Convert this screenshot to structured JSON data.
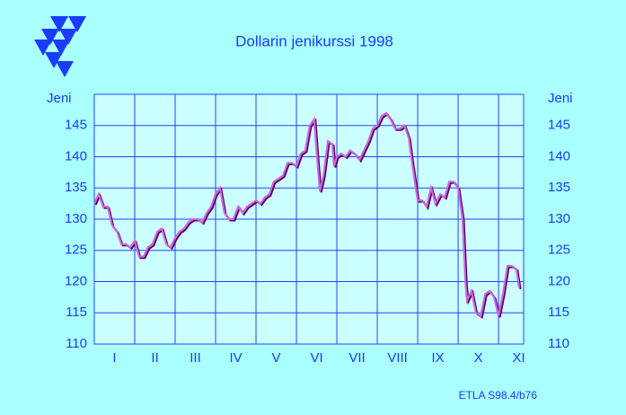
{
  "chart_data": {
    "type": "line",
    "title": "Dollarin jenikurssi 1998",
    "ylabel": "Jeni",
    "y2label": "Jeni",
    "source": "ETLA S98.4/b76",
    "grid": true,
    "xlim": [
      0,
      10.62
    ],
    "xticks": [
      {
        "value": 0.5,
        "label": "I"
      },
      {
        "value": 1.5,
        "label": "II"
      },
      {
        "value": 2.5,
        "label": "III"
      },
      {
        "value": 3.5,
        "label": "IV"
      },
      {
        "value": 4.5,
        "label": "V"
      },
      {
        "value": 5.5,
        "label": "VI"
      },
      {
        "value": 6.5,
        "label": "VII"
      },
      {
        "value": 7.5,
        "label": "VIII"
      },
      {
        "value": 8.5,
        "label": "IX"
      },
      {
        "value": 9.5,
        "label": "X"
      },
      {
        "value": 10.5,
        "label": "XI"
      }
    ],
    "ylim": [
      110,
      150
    ],
    "yticks": [
      110,
      115,
      120,
      125,
      130,
      135,
      140,
      145
    ],
    "y2lim": [
      110,
      150
    ],
    "y2ticks": [
      110,
      115,
      120,
      125,
      130,
      135,
      140,
      145
    ],
    "x": [
      0,
      0.11,
      0.22,
      0.33,
      0.44,
      0.56,
      0.67,
      0.78,
      0.89,
      1,
      1.11,
      1.22,
      1.33,
      1.44,
      1.56,
      1.67,
      1.78,
      1.89,
      2,
      2.11,
      2.22,
      2.33,
      2.44,
      2.56,
      2.67,
      2.78,
      2.89,
      3,
      3.11,
      3.22,
      3.33,
      3.44,
      3.56,
      3.67,
      3.78,
      3.89,
      4,
      4.11,
      4.22,
      4.33,
      4.44,
      4.56,
      4.67,
      4.78,
      4.89,
      5,
      5.11,
      5.22,
      5.33,
      5.44,
      5.51,
      5.58,
      5.67,
      5.78,
      5.89,
      5.93,
      6,
      6.11,
      6.22,
      6.33,
      6.44,
      6.56,
      6.67,
      6.78,
      6.89,
      7,
      7.11,
      7.22,
      7.33,
      7.44,
      7.56,
      7.67,
      7.78,
      7.84,
      7.93,
      8,
      8.11,
      8.22,
      8.33,
      8.44,
      8.56,
      8.67,
      8.78,
      8.89,
      9,
      9.11,
      9.18,
      9.22,
      9.33,
      9.44,
      9.56,
      9.67,
      9.78,
      9.89,
      10,
      10.11,
      10.22,
      10.33,
      10.44,
      10.51
    ],
    "series": [
      {
        "color": "#cc66dd",
        "values": [
          132.5,
          134,
          132,
          132,
          129,
          128,
          126,
          126,
          125.5,
          126.5,
          124,
          124,
          125.5,
          126,
          128,
          128.5,
          126,
          125.5,
          127,
          128,
          128.5,
          129.5,
          130,
          130,
          129.5,
          131,
          132,
          134,
          135,
          131,
          130,
          130,
          132,
          131,
          132,
          132.5,
          133,
          132.5,
          133.5,
          134,
          136,
          136.5,
          137,
          139,
          139,
          138.5,
          140.5,
          141,
          145,
          146,
          140,
          134.5,
          137,
          142.5,
          142,
          138.5,
          140,
          140.5,
          140,
          141,
          140.5,
          139.5,
          141,
          142.5,
          144.5,
          145,
          146.5,
          147,
          146,
          144.5,
          144.5,
          145,
          143,
          140,
          136,
          133,
          133,
          132,
          135,
          132.5,
          134,
          133.5,
          136,
          136,
          135,
          130,
          120,
          117,
          118.5,
          115,
          114.5,
          118,
          118.5,
          117.5,
          114.5,
          118,
          122.5,
          122.5,
          122,
          119
        ]
      }
    ]
  }
}
